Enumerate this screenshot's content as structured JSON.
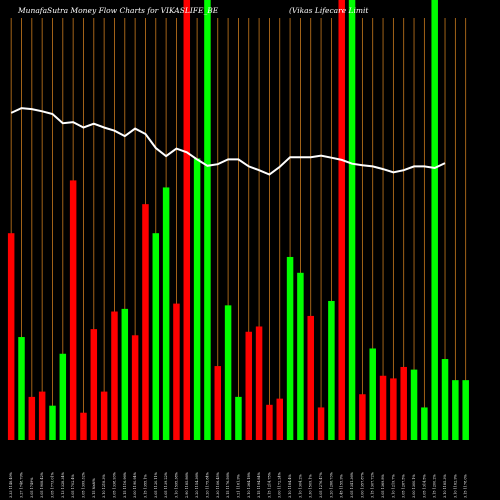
{
  "chart_data": {
    "type": "bar",
    "title": "MunafaSutra  Money Flow  Charts for VIKASLIFE_BE",
    "subtitle": "(Vikas Lifecare Limit",
    "grid": true,
    "colors": {
      "background": "#000000",
      "up": "#00ff00",
      "down": "#ff0000",
      "grid": "#c87a1e",
      "line": "#ffffff",
      "text": "#ffffff"
    },
    "categories": [
      "3.33 1148.49%",
      "3.27 1748.79%",
      "3.05 1749%",
      "3.05 1908.42%",
      "3.05 1773.01%",
      "3.13 1328.34%",
      "3.05 1702.4%",
      "3.05 1399.32%",
      "3.15 NaN%",
      "3.10 1218.3%",
      "3.05 1338.93%",
      "3.15 1116.96%",
      "3.00 1190.94%",
      "3.15 1355.1%",
      "3.05 1120.11%",
      "3.05 1139.22%",
      "3.10 1595.38%",
      "2.90 1185.86%",
      "3.20 1154.36%",
      "3.20 1175.84%",
      "3.30 1106.45%",
      "3.15 1176.56%",
      "3.21 1161.9%",
      "3.10 1364.18%",
      "3.15 1194.84%",
      "3.15 1214.75%",
      "3.00 1172.24%",
      "3.10 1184.4%",
      "3.10 1304.2%",
      "3.30 1509.1%",
      "3.05 1276.47%",
      "3.20 1266.73%",
      "3.45 1155.9%",
      "3.05 1341.36%",
      "3.00 1357.87%",
      "3.15 1307.72%",
      "3.05 1369.8%",
      "3.10 1219.7%",
      "3.05 1267.5%",
      "3.00 1300.1%",
      "3.05 1314.5%",
      "3.15 1200.2%",
      "3.10 1185.3%",
      "3.10 1162.9%",
      "3.15 1178.0%"
    ],
    "directions": [
      "down",
      "up",
      "down",
      "down",
      "up",
      "up",
      "down",
      "down",
      "down",
      "down",
      "down",
      "up",
      "down",
      "down",
      "up",
      "up",
      "down",
      "down",
      "up",
      "up",
      "down",
      "up",
      "up",
      "down",
      "down",
      "down",
      "down",
      "up",
      "up",
      "down",
      "down",
      "up",
      "down",
      "up",
      "down",
      "up",
      "down",
      "down",
      "down",
      "up",
      "up",
      "up",
      "up",
      "up",
      "up"
    ],
    "values": [
      235,
      117,
      49,
      55,
      39,
      98,
      295,
      31,
      126,
      55,
      146,
      149,
      119,
      268,
      235,
      287,
      155,
      500,
      320,
      500,
      84,
      153,
      49,
      123,
      129,
      40,
      47,
      208,
      190,
      141,
      37,
      158,
      500,
      500,
      52,
      104,
      73,
      70,
      83,
      80,
      37,
      500,
      92,
      68,
      68
    ],
    "line": [
      98,
      89,
      91,
      95,
      100,
      117,
      115,
      125,
      118,
      125,
      131,
      141,
      127,
      137,
      163,
      178,
      164,
      171,
      184,
      196,
      193,
      184,
      184,
      197,
      204,
      212,
      198,
      180,
      180,
      180,
      177,
      181,
      185,
      192,
      195,
      197,
      202,
      208,
      204,
      197,
      197,
      200,
      191,
      0,
      0
    ],
    "ylim": [
      0,
      500
    ]
  }
}
